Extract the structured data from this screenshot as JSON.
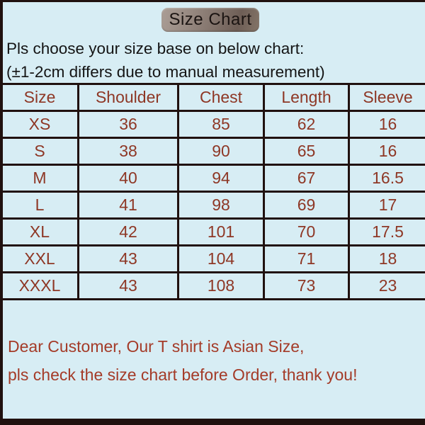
{
  "header": {
    "title": "Size Chart"
  },
  "intro": {
    "line1": "Pls choose your size base on below chart:",
    "line2": "(±1-2cm differs due to manual measurement)"
  },
  "chart_data": {
    "type": "table",
    "title": "Size Chart",
    "columns": [
      "Size",
      "Shoulder",
      "Chest",
      "Length",
      "Sleeve"
    ],
    "rows": [
      [
        "XS",
        "36",
        "85",
        "62",
        "16"
      ],
      [
        "S",
        "38",
        "90",
        "65",
        "16"
      ],
      [
        "M",
        "40",
        "94",
        "67",
        "16.5"
      ],
      [
        "L",
        "41",
        "98",
        "69",
        "17"
      ],
      [
        "XL",
        "42",
        "101",
        "70",
        "17.5"
      ],
      [
        "XXL",
        "43",
        "104",
        "71",
        "18"
      ],
      [
        "XXXL",
        "43",
        "108",
        "73",
        "23"
      ]
    ]
  },
  "note": {
    "line1": "Dear Customer, Our T shirt is Asian Size,",
    "line2": "pls check the size chart before Order, thank you!"
  },
  "colors": {
    "background": "#d7edf4",
    "border": "#20110f",
    "table_text": "#8e3725",
    "note_text": "#a43b28",
    "intro_text": "#141414",
    "button_base": "#8d7f77"
  }
}
